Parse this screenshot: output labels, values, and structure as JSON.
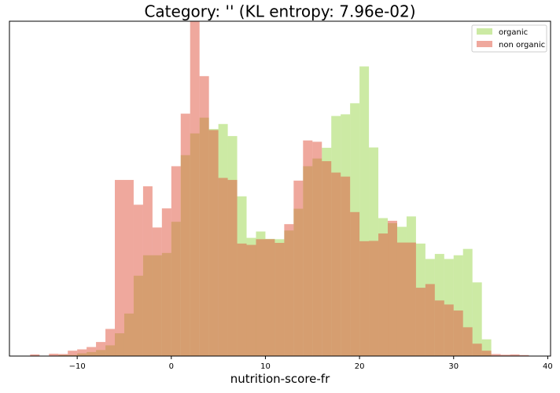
{
  "chart_data": {
    "type": "histogram",
    "title": "Category: '' (KL entropy: 7.96e-02)",
    "xlabel": "nutrition-score-fr",
    "ylabel": "",
    "xlim": [
      -17.2,
      40.3
    ],
    "ylim": [
      0,
      1.0
    ],
    "y_axis_hidden": true,
    "bin_start": -15.0,
    "bin_width": 1.0,
    "x_ticks": [
      -10,
      0,
      10,
      20,
      30,
      40
    ],
    "legend_position": "top-right",
    "series": [
      {
        "name": "organic",
        "color": "#9ad54a",
        "opacity": 0.5,
        "values": [
          0.0,
          0.0,
          0.0,
          0.003,
          0.003,
          0.008,
          0.012,
          0.018,
          0.032,
          0.068,
          0.127,
          0.24,
          0.301,
          0.301,
          0.308,
          0.401,
          0.6,
          0.665,
          0.712,
          0.678,
          0.693,
          0.657,
          0.477,
          0.353,
          0.372,
          0.35,
          0.349,
          0.375,
          0.44,
          0.567,
          0.59,
          0.622,
          0.717,
          0.722,
          0.755,
          0.865,
          0.623,
          0.412,
          0.397,
          0.386,
          0.417,
          0.336,
          0.29,
          0.305,
          0.29,
          0.301,
          0.32,
          0.22,
          0.05,
          0.0,
          0.0,
          0.0,
          0.0,
          0.0,
          0.0
        ]
      },
      {
        "name": "non organic",
        "color": "#e0523c",
        "opacity": 0.5,
        "values": [
          0.005,
          0.0,
          0.007,
          0.006,
          0.016,
          0.02,
          0.027,
          0.042,
          0.081,
          0.526,
          0.526,
          0.452,
          0.507,
          0.384,
          0.441,
          0.567,
          0.724,
          1.0,
          0.836,
          0.675,
          0.532,
          0.526,
          0.336,
          0.332,
          0.349,
          0.349,
          0.338,
          0.394,
          0.524,
          0.644,
          0.64,
          0.582,
          0.548,
          0.536,
          0.43,
          0.343,
          0.344,
          0.366,
          0.404,
          0.339,
          0.339,
          0.204,
          0.215,
          0.166,
          0.154,
          0.136,
          0.086,
          0.037,
          0.016,
          0.006,
          0.004,
          0.005,
          0.003,
          0.0,
          0.0,
          0.0,
          0.0,
          0.004
        ]
      }
    ]
  }
}
